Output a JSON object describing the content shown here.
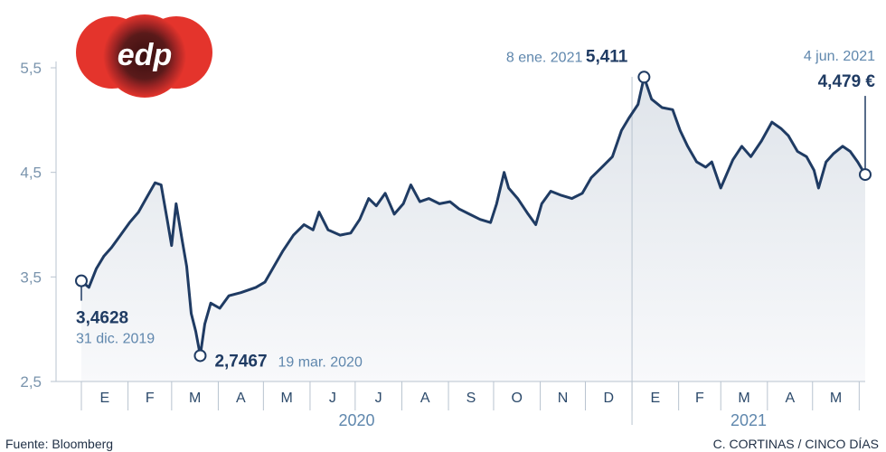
{
  "logo": {
    "text": "edp"
  },
  "footer": {
    "source": "Fuente: Bloomberg",
    "credit": "C. CORTINAS / CINCO DÍAS"
  },
  "colors": {
    "line": "#1f3b63",
    "axis_text": "#7a94ad",
    "month_text": "#2c4a6b",
    "year_text": "#5f87ad",
    "logo_red": "#e4342c"
  },
  "chart_data": {
    "type": "line",
    "title": "",
    "xlabel": "",
    "ylabel": "",
    "ylim": [
      2.5,
      5.5
    ],
    "yticks": [
      "5,5",
      "4,5",
      "3,5",
      "2,5"
    ],
    "grid": false,
    "months": [
      "E",
      "F",
      "M",
      "A",
      "M",
      "J",
      "J",
      "A",
      "S",
      "O",
      "N",
      "D",
      "E",
      "F",
      "M",
      "A",
      "M"
    ],
    "years": [
      "2020",
      "2021"
    ],
    "series": [
      {
        "points": [
          [
            "2019-12-31",
            3.46
          ],
          [
            "2020-01-05",
            3.4
          ],
          [
            "2020-01-10",
            3.58
          ],
          [
            "2020-01-15",
            3.7
          ],
          [
            "2020-01-20",
            3.78
          ],
          [
            "2020-01-26",
            3.9
          ],
          [
            "2020-02-01",
            4.02
          ],
          [
            "2020-02-07",
            4.12
          ],
          [
            "2020-02-12",
            4.25
          ],
          [
            "2020-02-18",
            4.4
          ],
          [
            "2020-02-22",
            4.38
          ],
          [
            "2020-02-26",
            4.05
          ],
          [
            "2020-02-29",
            3.8
          ],
          [
            "2020-03-03",
            4.2
          ],
          [
            "2020-03-07",
            3.85
          ],
          [
            "2020-03-10",
            3.6
          ],
          [
            "2020-03-13",
            3.15
          ],
          [
            "2020-03-16",
            2.98
          ],
          [
            "2020-03-19",
            2.75
          ],
          [
            "2020-03-22",
            3.05
          ],
          [
            "2020-03-26",
            3.25
          ],
          [
            "2020-04-01",
            3.2
          ],
          [
            "2020-04-07",
            3.32
          ],
          [
            "2020-04-15",
            3.35
          ],
          [
            "2020-04-25",
            3.4
          ],
          [
            "2020-05-01",
            3.45
          ],
          [
            "2020-05-07",
            3.6
          ],
          [
            "2020-05-13",
            3.75
          ],
          [
            "2020-05-20",
            3.9
          ],
          [
            "2020-05-27",
            4.0
          ],
          [
            "2020-06-02",
            3.95
          ],
          [
            "2020-06-06",
            4.12
          ],
          [
            "2020-06-12",
            3.95
          ],
          [
            "2020-06-20",
            3.9
          ],
          [
            "2020-06-27",
            3.92
          ],
          [
            "2020-07-03",
            4.05
          ],
          [
            "2020-07-09",
            4.25
          ],
          [
            "2020-07-14",
            4.18
          ],
          [
            "2020-07-20",
            4.3
          ],
          [
            "2020-07-26",
            4.1
          ],
          [
            "2020-08-01",
            4.2
          ],
          [
            "2020-08-06",
            4.38
          ],
          [
            "2020-08-12",
            4.22
          ],
          [
            "2020-08-18",
            4.25
          ],
          [
            "2020-08-25",
            4.2
          ],
          [
            "2020-09-01",
            4.22
          ],
          [
            "2020-09-07",
            4.15
          ],
          [
            "2020-09-14",
            4.1
          ],
          [
            "2020-09-21",
            4.05
          ],
          [
            "2020-09-28",
            4.02
          ],
          [
            "2020-10-02",
            4.2
          ],
          [
            "2020-10-07",
            4.5
          ],
          [
            "2020-10-10",
            4.35
          ],
          [
            "2020-10-16",
            4.25
          ],
          [
            "2020-10-23",
            4.1
          ],
          [
            "2020-10-28",
            4.0
          ],
          [
            "2020-11-01",
            4.2
          ],
          [
            "2020-11-07",
            4.32
          ],
          [
            "2020-11-14",
            4.28
          ],
          [
            "2020-11-21",
            4.25
          ],
          [
            "2020-11-28",
            4.3
          ],
          [
            "2020-12-04",
            4.45
          ],
          [
            "2020-12-11",
            4.55
          ],
          [
            "2020-12-18",
            4.65
          ],
          [
            "2020-12-24",
            4.9
          ],
          [
            "2020-12-29",
            5.02
          ],
          [
            "2021-01-04",
            5.15
          ],
          [
            "2021-01-08",
            5.41
          ],
          [
            "2021-01-13",
            5.2
          ],
          [
            "2021-01-20",
            5.12
          ],
          [
            "2021-01-27",
            5.1
          ],
          [
            "2021-02-01",
            4.9
          ],
          [
            "2021-02-06",
            4.75
          ],
          [
            "2021-02-12",
            4.6
          ],
          [
            "2021-02-18",
            4.55
          ],
          [
            "2021-02-22",
            4.6
          ],
          [
            "2021-02-28",
            4.35
          ],
          [
            "2021-03-03",
            4.45
          ],
          [
            "2021-03-08",
            4.62
          ],
          [
            "2021-03-14",
            4.75
          ],
          [
            "2021-03-20",
            4.65
          ],
          [
            "2021-03-27",
            4.8
          ],
          [
            "2021-04-03",
            4.98
          ],
          [
            "2021-04-09",
            4.92
          ],
          [
            "2021-04-14",
            4.85
          ],
          [
            "2021-04-20",
            4.7
          ],
          [
            "2021-04-26",
            4.65
          ],
          [
            "2021-05-01",
            4.52
          ],
          [
            "2021-05-04",
            4.35
          ],
          [
            "2021-05-09",
            4.6
          ],
          [
            "2021-05-14",
            4.68
          ],
          [
            "2021-05-20",
            4.75
          ],
          [
            "2021-05-25",
            4.7
          ],
          [
            "2021-05-30",
            4.6
          ],
          [
            "2021-06-04",
            4.479
          ]
        ]
      }
    ],
    "annotations": {
      "start": {
        "date": "31 dic. 2019",
        "value": "3,4628",
        "x": "2019-12-31",
        "y": 3.4628
      },
      "min": {
        "date": "19 mar. 2020",
        "value": "2,7467",
        "x": "2020-03-19",
        "y": 2.7467
      },
      "max": {
        "date": "8 ene. 2021",
        "value": "5,411",
        "x": "2021-01-08",
        "y": 5.411
      },
      "end": {
        "date": "4 jun. 2021",
        "value": "4,479 €",
        "x": "2021-06-04",
        "y": 4.479
      }
    }
  }
}
